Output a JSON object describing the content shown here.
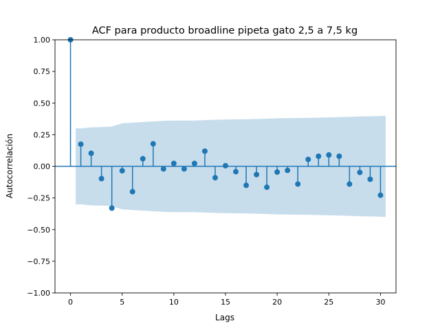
{
  "chart_data": {
    "type": "stem",
    "title": "ACF para producto broadline pipeta gato 2,5 a 7,5 kg",
    "xlabel": "Lags",
    "ylabel": "Autocorrelación",
    "xlim": [
      -1.5,
      31.5
    ],
    "ylim": [
      -1.0,
      1.0
    ],
    "xticks": [
      0,
      5,
      10,
      15,
      20,
      25,
      30
    ],
    "yticks": [
      -1.0,
      -0.75,
      -0.5,
      -0.25,
      0.0,
      0.25,
      0.5,
      0.75,
      1.0
    ],
    "xtick_labels": [
      "0",
      "5",
      "10",
      "15",
      "20",
      "25",
      "30"
    ],
    "ytick_labels": [
      "−1.00",
      "−0.75",
      "−0.50",
      "−0.25",
      "0.00",
      "0.25",
      "0.50",
      "0.75",
      "1.00"
    ],
    "grid": false,
    "lags": [
      0,
      1,
      2,
      3,
      4,
      5,
      6,
      7,
      8,
      9,
      10,
      11,
      12,
      13,
      14,
      15,
      16,
      17,
      18,
      19,
      20,
      21,
      22,
      23,
      24,
      25,
      26,
      27,
      28,
      29,
      30
    ],
    "values": [
      1.0,
      0.175,
      0.103,
      -0.097,
      -0.33,
      -0.035,
      -0.2,
      0.06,
      0.178,
      -0.02,
      0.023,
      -0.02,
      0.023,
      0.12,
      -0.09,
      0.005,
      -0.042,
      -0.15,
      -0.065,
      -0.165,
      -0.045,
      -0.032,
      -0.14,
      0.055,
      0.08,
      0.09,
      0.08,
      -0.14,
      -0.048,
      -0.102,
      -0.228
    ],
    "confidence_band": {
      "lags": [
        0.5,
        1,
        2,
        3,
        4,
        5,
        6,
        7,
        8,
        9,
        10,
        11,
        12,
        13,
        14,
        15,
        16,
        17,
        18,
        19,
        20,
        21,
        22,
        23,
        24,
        25,
        26,
        27,
        28,
        29,
        30,
        30.5
      ],
      "upper": [
        0.3,
        0.3,
        0.308,
        0.31,
        0.315,
        0.34,
        0.345,
        0.35,
        0.355,
        0.36,
        0.362,
        0.362,
        0.362,
        0.365,
        0.368,
        0.37,
        0.371,
        0.372,
        0.374,
        0.377,
        0.38,
        0.381,
        0.382,
        0.383,
        0.385,
        0.387,
        0.389,
        0.391,
        0.394,
        0.396,
        0.398,
        0.4
      ]
    },
    "colors": {
      "marker": "#1f77b4",
      "band": "#1f77b4",
      "band_opacity": 0.25,
      "zero_line": "#1f77b4"
    }
  }
}
